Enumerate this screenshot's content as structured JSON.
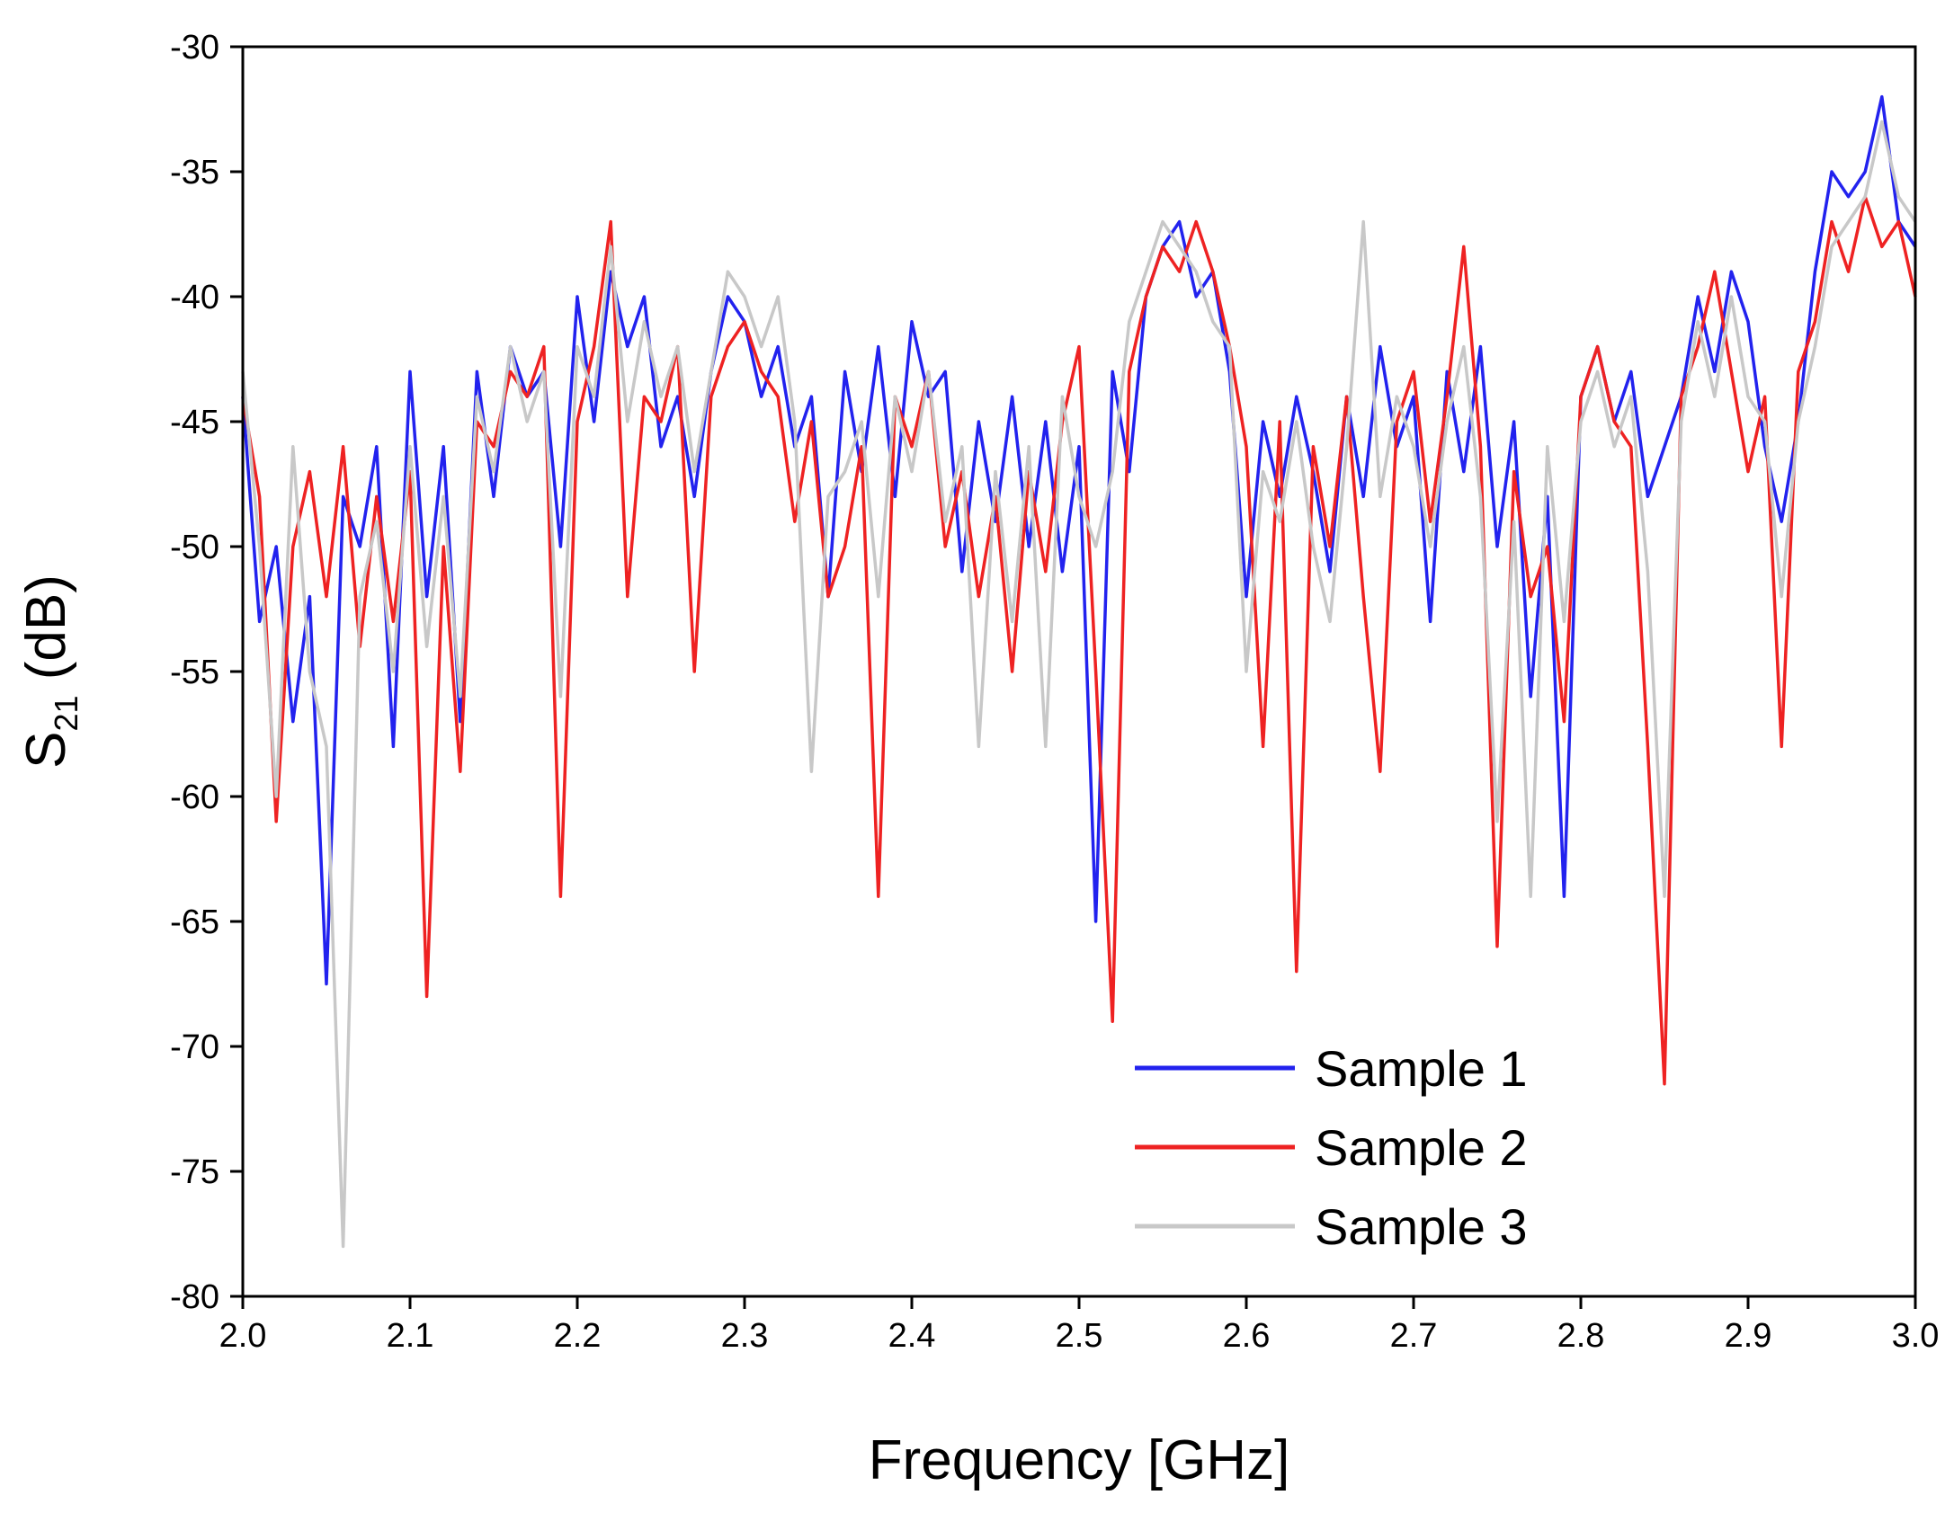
{
  "chart_data": {
    "type": "line",
    "title": "",
    "xlabel": "Frequency [GHz]",
    "ylabel": {
      "main": "S",
      "sub": "21",
      "unit": " (dB)"
    },
    "xlim": [
      2.0,
      3.0
    ],
    "ylim": [
      -80,
      -30
    ],
    "xticks": [
      "2.0",
      "2.1",
      "2.2",
      "2.3",
      "2.4",
      "2.5",
      "2.6",
      "2.7",
      "2.8",
      "2.9",
      "3.0"
    ],
    "yticks": [
      "-30",
      "-35",
      "-40",
      "-45",
      "-50",
      "-55",
      "-60",
      "-65",
      "-70",
      "-75",
      "-80"
    ],
    "grid": false,
    "legend_position": "bottom-right",
    "x": [
      2.0,
      2.01,
      2.02,
      2.03,
      2.04,
      2.05,
      2.06,
      2.07,
      2.08,
      2.09,
      2.1,
      2.11,
      2.12,
      2.13,
      2.14,
      2.15,
      2.16,
      2.17,
      2.18,
      2.19,
      2.2,
      2.21,
      2.22,
      2.23,
      2.24,
      2.25,
      2.26,
      2.27,
      2.28,
      2.29,
      2.3,
      2.31,
      2.32,
      2.33,
      2.34,
      2.35,
      2.36,
      2.37,
      2.38,
      2.39,
      2.4,
      2.41,
      2.42,
      2.43,
      2.44,
      2.45,
      2.46,
      2.47,
      2.48,
      2.49,
      2.5,
      2.51,
      2.52,
      2.53,
      2.54,
      2.55,
      2.56,
      2.57,
      2.58,
      2.59,
      2.6,
      2.61,
      2.62,
      2.63,
      2.64,
      2.65,
      2.66,
      2.67,
      2.68,
      2.69,
      2.7,
      2.71,
      2.72,
      2.73,
      2.74,
      2.75,
      2.76,
      2.77,
      2.78,
      2.79,
      2.8,
      2.81,
      2.82,
      2.83,
      2.84,
      2.85,
      2.86,
      2.87,
      2.88,
      2.89,
      2.9,
      2.91,
      2.92,
      2.93,
      2.94,
      2.95,
      2.96,
      2.97,
      2.98,
      2.99,
      3.0
    ],
    "series": [
      {
        "name": "Sample 1",
        "color": "#2222ee",
        "values": [
          -44,
          -53,
          -50,
          -57,
          -52,
          -67.5,
          -48,
          -50,
          -46,
          -58,
          -43,
          -52,
          -46,
          -57,
          -43,
          -48,
          -42,
          -44,
          -43,
          -50,
          -40,
          -45,
          -39,
          -42,
          -40,
          -46,
          -44,
          -48,
          -43,
          -40,
          -41,
          -44,
          -42,
          -46,
          -44,
          -52,
          -43,
          -47,
          -42,
          -48,
          -41,
          -44,
          -43,
          -51,
          -45,
          -49,
          -44,
          -50,
          -45,
          -51,
          -46,
          -65,
          -43,
          -47,
          -40,
          -38,
          -37,
          -40,
          -39,
          -43,
          -52,
          -45,
          -48,
          -44,
          -47,
          -51,
          -44,
          -48,
          -42,
          -46,
          -44,
          -53,
          -43,
          -47,
          -42,
          -50,
          -45,
          -56,
          -48,
          -64,
          -44,
          -42,
          -45,
          -43,
          -48,
          -46,
          -44,
          -40,
          -43,
          -39,
          -41,
          -46,
          -49,
          -45,
          -39,
          -35,
          -36,
          -35,
          -32,
          -37,
          -38
        ]
      },
      {
        "name": "Sample 2",
        "color": "#ee2222",
        "values": [
          -44,
          -48,
          -61,
          -50,
          -47,
          -52,
          -46,
          -54,
          -48,
          -53,
          -47,
          -68,
          -50,
          -59,
          -45,
          -46,
          -43,
          -44,
          -42,
          -64,
          -45,
          -42,
          -37,
          -52,
          -44,
          -45,
          -42,
          -55,
          -44,
          -42,
          -41,
          -43,
          -44,
          -49,
          -45,
          -52,
          -50,
          -46,
          -64,
          -44,
          -46,
          -43,
          -50,
          -47,
          -52,
          -48,
          -55,
          -47,
          -51,
          -45,
          -42,
          -55,
          -69,
          -43,
          -40,
          -38,
          -39,
          -37,
          -39,
          -42,
          -46,
          -58,
          -45,
          -67,
          -46,
          -50,
          -44,
          -52,
          -59,
          -45,
          -43,
          -49,
          -44,
          -38,
          -46,
          -66,
          -47,
          -52,
          -50,
          -57,
          -44,
          -42,
          -45,
          -46,
          -58,
          -71.5,
          -44,
          -42,
          -39,
          -43,
          -47,
          -44,
          -58,
          -43,
          -41,
          -37,
          -39,
          -36,
          -38,
          -37,
          -40
        ]
      },
      {
        "name": "Sample 3",
        "color": "#c8c8c8",
        "values": [
          -43,
          -50,
          -60,
          -46,
          -55,
          -58,
          -78,
          -52,
          -49,
          -55,
          -46,
          -54,
          -48,
          -56,
          -44,
          -47,
          -42,
          -45,
          -43,
          -56,
          -42,
          -44,
          -38,
          -45,
          -41,
          -44,
          -42,
          -47,
          -43,
          -39,
          -40,
          -42,
          -40,
          -45,
          -59,
          -48,
          -47,
          -45,
          -52,
          -44,
          -47,
          -43,
          -49,
          -46,
          -58,
          -47,
          -53,
          -46,
          -58,
          -44,
          -48,
          -50,
          -47,
          -41,
          -39,
          -37,
          -38,
          -39,
          -41,
          -42,
          -55,
          -47,
          -49,
          -45,
          -50,
          -53,
          -46,
          -37,
          -48,
          -44,
          -46,
          -50,
          -45,
          -42,
          -48,
          -61,
          -49,
          -64,
          -46,
          -53,
          -45,
          -43,
          -46,
          -44,
          -51,
          -64,
          -45,
          -41,
          -44,
          -40,
          -44,
          -45,
          -52,
          -45,
          -42,
          -38,
          -37,
          -36,
          -33,
          -36,
          -37
        ]
      }
    ]
  }
}
